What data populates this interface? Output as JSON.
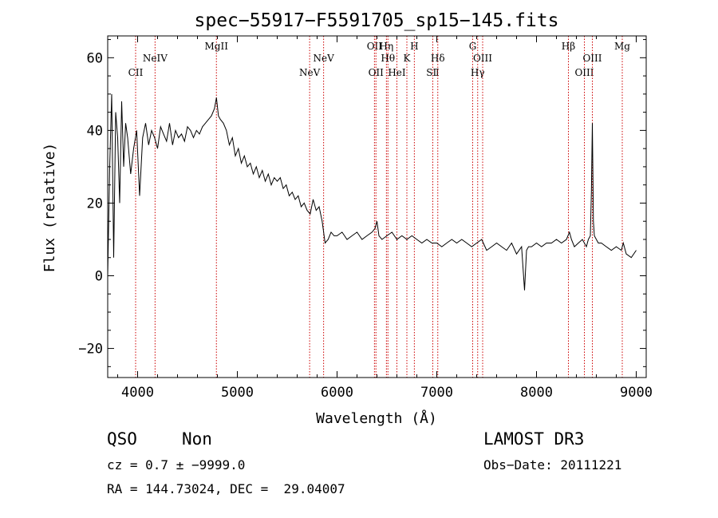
{
  "chart_data": {
    "type": "line",
    "title": "spec−55917−F5591705_sp15−145.fits",
    "xlabel": "Wavelength (Å)",
    "ylabel": "Flux (relative)",
    "xlim": [
      3700,
      9100
    ],
    "ylim": [
      -28,
      66
    ],
    "xticks": [
      4000,
      5000,
      6000,
      7000,
      8000,
      9000
    ],
    "yticks": [
      -20,
      0,
      20,
      40,
      60
    ],
    "ytick_labels": [
      "−20",
      "0",
      "20",
      "40",
      "60"
    ],
    "series": [
      {
        "name": "spectrum",
        "color": "#000000",
        "x": [
          3700,
          3720,
          3740,
          3760,
          3780,
          3800,
          3820,
          3840,
          3860,
          3880,
          3900,
          3930,
          3960,
          3990,
          4020,
          4050,
          4080,
          4110,
          4140,
          4170,
          4200,
          4230,
          4260,
          4290,
          4320,
          4350,
          4380,
          4410,
          4440,
          4470,
          4500,
          4530,
          4560,
          4590,
          4620,
          4650,
          4680,
          4710,
          4740,
          4770,
          4790,
          4810,
          4830,
          4860,
          4890,
          4920,
          4950,
          4980,
          5010,
          5040,
          5070,
          5100,
          5130,
          5160,
          5190,
          5220,
          5250,
          5280,
          5310,
          5340,
          5370,
          5400,
          5430,
          5460,
          5490,
          5520,
          5550,
          5580,
          5610,
          5640,
          5670,
          5700,
          5730,
          5760,
          5790,
          5820,
          5850,
          5880,
          5910,
          5940,
          5970,
          6000,
          6050,
          6100,
          6150,
          6200,
          6250,
          6300,
          6350,
          6380,
          6400,
          6420,
          6450,
          6500,
          6550,
          6600,
          6650,
          6700,
          6750,
          6800,
          6850,
          6900,
          6950,
          7000,
          7050,
          7100,
          7150,
          7200,
          7250,
          7300,
          7350,
          7400,
          7450,
          7500,
          7550,
          7600,
          7650,
          7700,
          7750,
          7800,
          7850,
          7880,
          7900,
          7920,
          7950,
          8000,
          8050,
          8100,
          8150,
          8200,
          8250,
          8300,
          8330,
          8350,
          8380,
          8420,
          8460,
          8500,
          8520,
          8540,
          8550,
          8560,
          8570,
          8580,
          8600,
          8620,
          8650,
          8700,
          8750,
          8800,
          8850,
          8870,
          8900,
          8950,
          9000
        ],
        "y": [
          0,
          30,
          50,
          5,
          45,
          38,
          20,
          48,
          30,
          42,
          38,
          28,
          35,
          40,
          22,
          38,
          42,
          36,
          40,
          38,
          35,
          41,
          39,
          37,
          42,
          36,
          40,
          38,
          39,
          37,
          41,
          40,
          38,
          40,
          39,
          41,
          42,
          43,
          44,
          46,
          49,
          44,
          43,
          42,
          40,
          36,
          38,
          33,
          35,
          31,
          33,
          30,
          31,
          28,
          30,
          27,
          29,
          26,
          28,
          25,
          27,
          26,
          27,
          24,
          25,
          22,
          23,
          21,
          22,
          19,
          20,
          18,
          17,
          21,
          18,
          19,
          15,
          9,
          10,
          12,
          11,
          11,
          12,
          10,
          11,
          12,
          10,
          11,
          12,
          13,
          15,
          11,
          10,
          11,
          12,
          10,
          11,
          10,
          11,
          10,
          9,
          10,
          9,
          9,
          8,
          9,
          10,
          9,
          10,
          9,
          8,
          9,
          10,
          7,
          8,
          9,
          8,
          7,
          9,
          6,
          8,
          -4,
          7,
          8,
          8,
          9,
          8,
          9,
          9,
          10,
          9,
          10,
          12,
          10,
          8,
          9,
          10,
          8,
          10,
          11,
          23,
          42,
          15,
          11,
          10,
          9,
          9,
          8,
          7,
          8,
          7,
          9,
          6,
          5,
          7
        ]
      }
    ],
    "lines": [
      {
        "wave": 3980,
        "label": "CII",
        "row": 2
      },
      {
        "wave": 4175,
        "label": "NeIV",
        "row": 1
      },
      {
        "wave": 4790,
        "label": "MgII",
        "row": 0
      },
      {
        "wave": 5725,
        "label": "NeV",
        "row": 2
      },
      {
        "wave": 5865,
        "label": "NeV",
        "row": 1
      },
      {
        "wave": 6375,
        "label": "OII",
        "row": 0
      },
      {
        "wave": 6390,
        "label": "OII",
        "row": 2
      },
      {
        "wave": 6495,
        "label": "Hη",
        "row": 0
      },
      {
        "wave": 6510,
        "label": "Hθ",
        "row": 1
      },
      {
        "wave": 6600,
        "label": "HeI",
        "row": 2
      },
      {
        "wave": 6700,
        "label": "K",
        "row": 1
      },
      {
        "wave": 6775,
        "label": "H",
        "row": 0
      },
      {
        "wave": 6960,
        "label": "SⅡ",
        "row": 2
      },
      {
        "wave": 7010,
        "label": "Hδ",
        "row": 1
      },
      {
        "wave": 7360,
        "label": "G",
        "row": 0
      },
      {
        "wave": 7410,
        "label": "Hγ",
        "row": 2
      },
      {
        "wave": 7460,
        "label": "OIII",
        "row": 1
      },
      {
        "wave": 8320,
        "label": "Hβ",
        "row": 0
      },
      {
        "wave": 8480,
        "label": "OIII",
        "row": 2
      },
      {
        "wave": 8560,
        "label": "OIII",
        "row": 1
      },
      {
        "wave": 8860,
        "label": "Mg",
        "row": 0
      }
    ]
  },
  "footer": {
    "class": "QSO",
    "subclass": "Non",
    "survey": "LAMOST DR3",
    "cz": "cz = 0.7 ± −9999.0",
    "obs_date": "Obs−Date: 20111221",
    "radec": "RA = 144.73024, DEC =  29.04007"
  }
}
